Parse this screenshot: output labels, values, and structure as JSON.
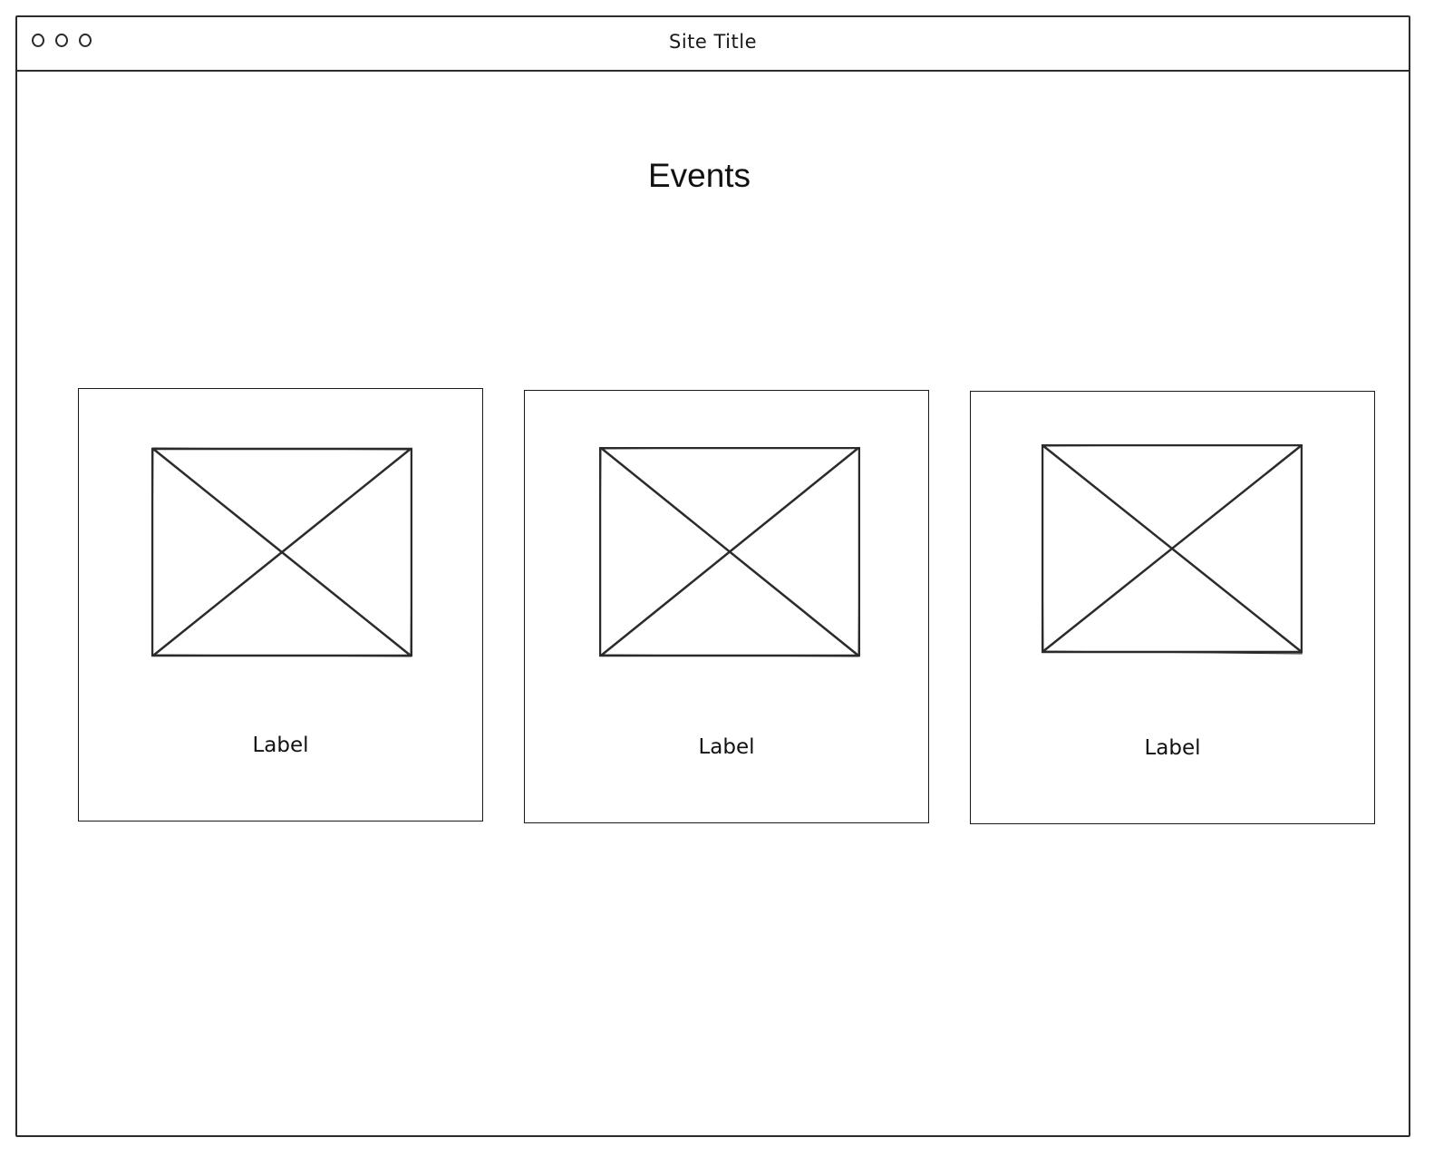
{
  "window": {
    "title": "Site Title",
    "controls": [
      "window-dot-1",
      "window-dot-2",
      "window-dot-3"
    ]
  },
  "main": {
    "heading": "Events",
    "cards": [
      {
        "label": "Label",
        "image_icon": "image-placeholder-icon"
      },
      {
        "label": "Label",
        "image_icon": "image-placeholder-icon"
      },
      {
        "label": "Label",
        "image_icon": "image-placeholder-icon"
      }
    ]
  },
  "colors": {
    "stroke": "#2b2b2b",
    "background": "#ffffff"
  }
}
